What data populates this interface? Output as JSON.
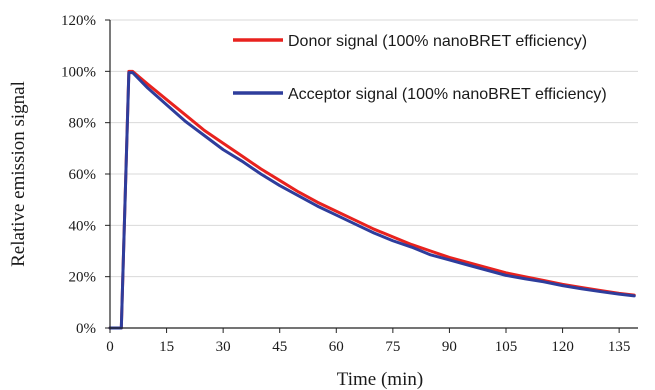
{
  "chart_data": {
    "type": "line",
    "xlabel": "Time (min)",
    "ylabel": "Relative emission signal",
    "xlim": [
      0,
      140
    ],
    "ylim": [
      0,
      120
    ],
    "x_ticks": [
      0,
      15,
      30,
      45,
      60,
      75,
      90,
      105,
      120,
      135
    ],
    "y_ticks": [
      0,
      20,
      40,
      60,
      80,
      100,
      120
    ],
    "x_tick_labels": [
      "0",
      "15",
      "30",
      "45",
      "60",
      "75",
      "90",
      "105",
      "120",
      "135"
    ],
    "y_tick_labels": [
      "0%",
      "20%",
      "40%",
      "60%",
      "80%",
      "100%",
      "120%"
    ],
    "grid": "horizontal",
    "legend_position": "top-right",
    "series": [
      {
        "name": "Donor signal (100% nanoBRET efficiency)",
        "color": "#e8221e",
        "x": [
          0,
          3,
          5,
          6,
          10,
          15,
          20,
          25,
          30,
          35,
          40,
          45,
          50,
          55,
          60,
          65,
          70,
          75,
          80,
          85,
          90,
          95,
          100,
          105,
          110,
          115,
          120,
          125,
          130,
          135,
          139
        ],
        "y": [
          0,
          0,
          100,
          100,
          95,
          89,
          83,
          77,
          72,
          67,
          62,
          57.5,
          53,
          49,
          45.5,
          42,
          38.5,
          35.5,
          32.5,
          30,
          27.5,
          25.5,
          23.5,
          21.5,
          20,
          18.5,
          17,
          15.8,
          14.6,
          13.5,
          12.8
        ]
      },
      {
        "name": "Acceptor signal (100% nanoBRET efficiency)",
        "color": "#2e3d9c",
        "x": [
          0,
          3,
          5,
          6,
          10,
          15,
          20,
          25,
          30,
          35,
          40,
          45,
          50,
          55,
          60,
          65,
          70,
          75,
          80,
          85,
          90,
          95,
          100,
          105,
          110,
          115,
          120,
          125,
          130,
          135,
          139
        ],
        "y": [
          0,
          0,
          99.5,
          99.5,
          93.5,
          87,
          80.5,
          75,
          69.5,
          65,
          60,
          55.5,
          51.5,
          47.5,
          44,
          40.5,
          37,
          34,
          31.5,
          28.5,
          26.5,
          24.5,
          22.5,
          20.5,
          19.2,
          18,
          16.5,
          15.3,
          14.2,
          13.2,
          12.5
        ]
      }
    ]
  }
}
